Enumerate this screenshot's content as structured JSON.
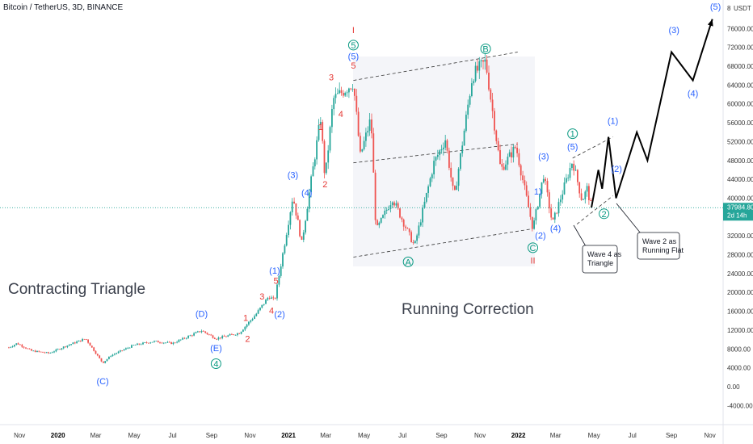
{
  "header": {
    "symbol": "Bitcoin / TetherUS, 3D, BINANCE",
    "currency_label": "USDT",
    "scale_value": "8"
  },
  "price_badge": {
    "price": "37984.80",
    "countdown": "2d 14h",
    "color": "#26a69a"
  },
  "annotations": {
    "contracting_triangle": "Contracting Triangle",
    "running_correction": "Running Correction",
    "wave4_note": [
      "Wave 4 as",
      "Triangle"
    ],
    "wave2_note": [
      "Wave 2 as",
      "Running Flat"
    ]
  },
  "colors": {
    "red": "#e53935",
    "blue": "#2962ff",
    "green": "#089981",
    "black": "#000000"
  },
  "chart_data": {
    "type": "candlestick",
    "y_ticks": [
      "76000.00",
      "72000.00",
      "68000.00",
      "64000.00",
      "60000.00",
      "56000.00",
      "52000.00",
      "48000.00",
      "44000.00",
      "40000.00",
      "36000.00",
      "32000.00",
      "28000.00",
      "24000.00",
      "20000.00",
      "16000.00",
      "12000.00",
      "8000.00",
      "4000.00",
      "0.00",
      "-4000.00"
    ],
    "x_ticks": [
      {
        "label": "Nov",
        "bold": false
      },
      {
        "label": "2020",
        "bold": true
      },
      {
        "label": "Mar",
        "bold": false
      },
      {
        "label": "May",
        "bold": false
      },
      {
        "label": "Jul",
        "bold": false
      },
      {
        "label": "Sep",
        "bold": false
      },
      {
        "label": "Nov",
        "bold": false
      },
      {
        "label": "2021",
        "bold": true
      },
      {
        "label": "Mar",
        "bold": false
      },
      {
        "label": "May",
        "bold": false
      },
      {
        "label": "Jul",
        "bold": false
      },
      {
        "label": "Sep",
        "bold": false
      },
      {
        "label": "Nov",
        "bold": false
      },
      {
        "label": "2022",
        "bold": true
      },
      {
        "label": "Mar",
        "bold": false
      },
      {
        "label": "May",
        "bold": false
      },
      {
        "label": "Jul",
        "bold": false
      },
      {
        "label": "Sep",
        "bold": false
      },
      {
        "label": "Nov",
        "bold": false
      }
    ],
    "ylim": [
      -6000,
      80000
    ],
    "last_price": 37984.8,
    "price_path": [
      {
        "d": "2019-10-15",
        "p": 8300
      },
      {
        "d": "2019-10-28",
        "p": 9200
      },
      {
        "d": "2019-11-20",
        "p": 7600
      },
      {
        "d": "2019-12-18",
        "p": 7100
      },
      {
        "d": "2020-01-15",
        "p": 8700
      },
      {
        "d": "2020-02-14",
        "p": 10200
      },
      {
        "d": "2020-03-12",
        "p": 5000
      },
      {
        "d": "2020-03-25",
        "p": 6600
      },
      {
        "d": "2020-04-30",
        "p": 8800
      },
      {
        "d": "2020-06-01",
        "p": 9600
      },
      {
        "d": "2020-07-01",
        "p": 9200
      },
      {
        "d": "2020-08-16",
        "p": 11900
      },
      {
        "d": "2020-09-08",
        "p": 10200
      },
      {
        "d": "2020-10-15",
        "p": 11400
      },
      {
        "d": "2020-11-10",
        "p": 15300
      },
      {
        "d": "2020-12-01",
        "p": 19200
      },
      {
        "d": "2020-12-10",
        "p": 18200
      },
      {
        "d": "2021-01-08",
        "p": 40500
      },
      {
        "d": "2021-01-22",
        "p": 30500
      },
      {
        "d": "2021-02-21",
        "p": 57000
      },
      {
        "d": "2021-02-28",
        "p": 44000
      },
      {
        "d": "2021-03-13",
        "p": 61000
      },
      {
        "d": "2021-04-14",
        "p": 64500
      },
      {
        "d": "2021-04-25",
        "p": 49000
      },
      {
        "d": "2021-05-12",
        "p": 57000
      },
      {
        "d": "2021-05-20",
        "p": 33000
      },
      {
        "d": "2021-06-15",
        "p": 40000
      },
      {
        "d": "2021-07-20",
        "p": 29800
      },
      {
        "d": "2021-08-20",
        "p": 47500
      },
      {
        "d": "2021-09-07",
        "p": 52500
      },
      {
        "d": "2021-09-21",
        "p": 40000
      },
      {
        "d": "2021-10-20",
        "p": 66000
      },
      {
        "d": "2021-11-10",
        "p": 69000
      },
      {
        "d": "2021-12-04",
        "p": 46000
      },
      {
        "d": "2021-12-28",
        "p": 51000
      },
      {
        "d": "2022-01-24",
        "p": 33500
      },
      {
        "d": "2022-02-10",
        "p": 45000
      },
      {
        "d": "2022-02-24",
        "p": 34500
      },
      {
        "d": "2022-03-28",
        "p": 48000
      },
      {
        "d": "2022-04-12",
        "p": 39500
      },
      {
        "d": "2022-04-20",
        "p": 42000
      },
      {
        "d": "2022-04-27",
        "p": 37985
      }
    ],
    "projection_path": [
      {
        "d": "2022-04-27",
        "p": 37985
      },
      {
        "d": "2022-05-08",
        "p": 46000
      },
      {
        "d": "2022-05-14",
        "p": 42000
      },
      {
        "d": "2022-05-24",
        "p": 53000
      },
      {
        "d": "2022-06-05",
        "p": 40000
      },
      {
        "d": "2022-07-08",
        "p": 54000
      },
      {
        "d": "2022-07-25",
        "p": 48000
      },
      {
        "d": "2022-09-01",
        "p": 71000
      },
      {
        "d": "2022-10-05",
        "p": 65000
      },
      {
        "d": "2022-11-05",
        "p": 78000
      }
    ],
    "channel_lines": [
      {
        "from": {
          "d": "2021-04-14",
          "p": 65000
        },
        "to": {
          "d": "2021-12-31",
          "p": 71000
        }
      },
      {
        "from": {
          "d": "2021-04-14",
          "p": 47500
        },
        "to": {
          "d": "2021-12-31",
          "p": 51500
        }
      },
      {
        "from": {
          "d": "2021-04-14",
          "p": 27500
        },
        "to": {
          "d": "2022-01-24",
          "p": 33500
        }
      },
      {
        "from": {
          "d": "2022-03-28",
          "p": 48500
        },
        "to": {
          "d": "2022-05-31",
          "p": 53000
        }
      },
      {
        "from": {
          "d": "2022-04-04",
          "p": 34500
        },
        "to": {
          "d": "2022-05-31",
          "p": 40500
        }
      }
    ],
    "wave_labels": [
      {
        "t": "(C)",
        "c": "blue",
        "d": "2020-03-12",
        "p": 500
      },
      {
        "t": "(D)",
        "c": "blue",
        "d": "2020-08-16",
        "p": 14800
      },
      {
        "t": "(E)",
        "c": "blue",
        "d": "2020-09-08",
        "p": 7500
      },
      {
        "t": "4",
        "c": "green",
        "circle": true,
        "d": "2020-09-08",
        "p": 4200
      },
      {
        "t": "1",
        "c": "red",
        "d": "2020-10-25",
        "p": 14000
      },
      {
        "t": "2",
        "c": "red",
        "d": "2020-10-28",
        "p": 9500
      },
      {
        "t": "3",
        "c": "red",
        "d": "2020-11-20",
        "p": 18500
      },
      {
        "t": "4",
        "c": "red",
        "d": "2020-12-05",
        "p": 15500
      },
      {
        "t": "5",
        "c": "red",
        "d": "2020-12-12",
        "p": 21800
      },
      {
        "t": "(1)",
        "c": "blue",
        "d": "2020-12-10",
        "p": 24000
      },
      {
        "t": "(2)",
        "c": "blue",
        "d": "2020-12-18",
        "p": 14700
      },
      {
        "t": "(3)",
        "c": "blue",
        "d": "2021-01-08",
        "p": 44300
      },
      {
        "t": "(4)",
        "c": "blue",
        "d": "2021-01-30",
        "p": 40500
      },
      {
        "t": "1",
        "c": "red",
        "d": "2021-02-21",
        "p": 54500
      },
      {
        "t": "2",
        "c": "red",
        "d": "2021-02-28",
        "p": 42300
      },
      {
        "t": "3",
        "c": "red",
        "d": "2021-03-10",
        "p": 65000
      },
      {
        "t": "4",
        "c": "red",
        "d": "2021-03-25",
        "p": 57200
      },
      {
        "t": "5",
        "c": "red",
        "d": "2021-04-14",
        "p": 67500
      },
      {
        "t": "(5)",
        "c": "blue",
        "d": "2021-04-14",
        "p": 69500
      },
      {
        "t": "5",
        "c": "green",
        "circle": true,
        "d": "2021-04-14",
        "p": 71800
      },
      {
        "t": "I",
        "c": "red",
        "d": "2021-04-14",
        "p": 75000
      },
      {
        "t": "A",
        "c": "green",
        "circle": true,
        "d": "2021-07-10",
        "p": 25800
      },
      {
        "t": "B",
        "c": "green",
        "circle": true,
        "d": "2021-11-10",
        "p": 71000
      },
      {
        "t": "C",
        "c": "green",
        "circle": true,
        "d": "2022-01-24",
        "p": 28800
      },
      {
        "t": "II",
        "c": "red",
        "d": "2022-01-24",
        "p": 26100
      },
      {
        "t": "(2)",
        "c": "blue",
        "d": "2022-02-05",
        "p": 31400
      },
      {
        "t": "1)",
        "c": "blue",
        "d": "2022-02-01",
        "p": 40800
      },
      {
        "t": "(3)",
        "c": "blue",
        "d": "2022-02-10",
        "p": 48200
      },
      {
        "t": "(4)",
        "c": "blue",
        "d": "2022-03-01",
        "p": 33000
      },
      {
        "t": "(5)",
        "c": "blue",
        "d": "2022-03-28",
        "p": 50300
      },
      {
        "t": "1",
        "c": "green",
        "circle": true,
        "d": "2022-03-28",
        "p": 53000
      },
      {
        "t": "2",
        "c": "green",
        "circle": true,
        "d": "2022-05-17",
        "p": 36000
      },
      {
        "t": "(1)",
        "c": "blue",
        "d": "2022-05-31",
        "p": 55800
      },
      {
        "t": "(2)",
        "c": "blue",
        "d": "2022-06-06",
        "p": 45600
      },
      {
        "t": "(3)",
        "c": "blue",
        "d": "2022-09-05",
        "p": 75000
      },
      {
        "t": "(4)",
        "c": "blue",
        "d": "2022-10-05",
        "p": 61600
      },
      {
        "t": "(5)",
        "c": "blue",
        "d": "2022-11-10",
        "p": 80000
      }
    ]
  }
}
